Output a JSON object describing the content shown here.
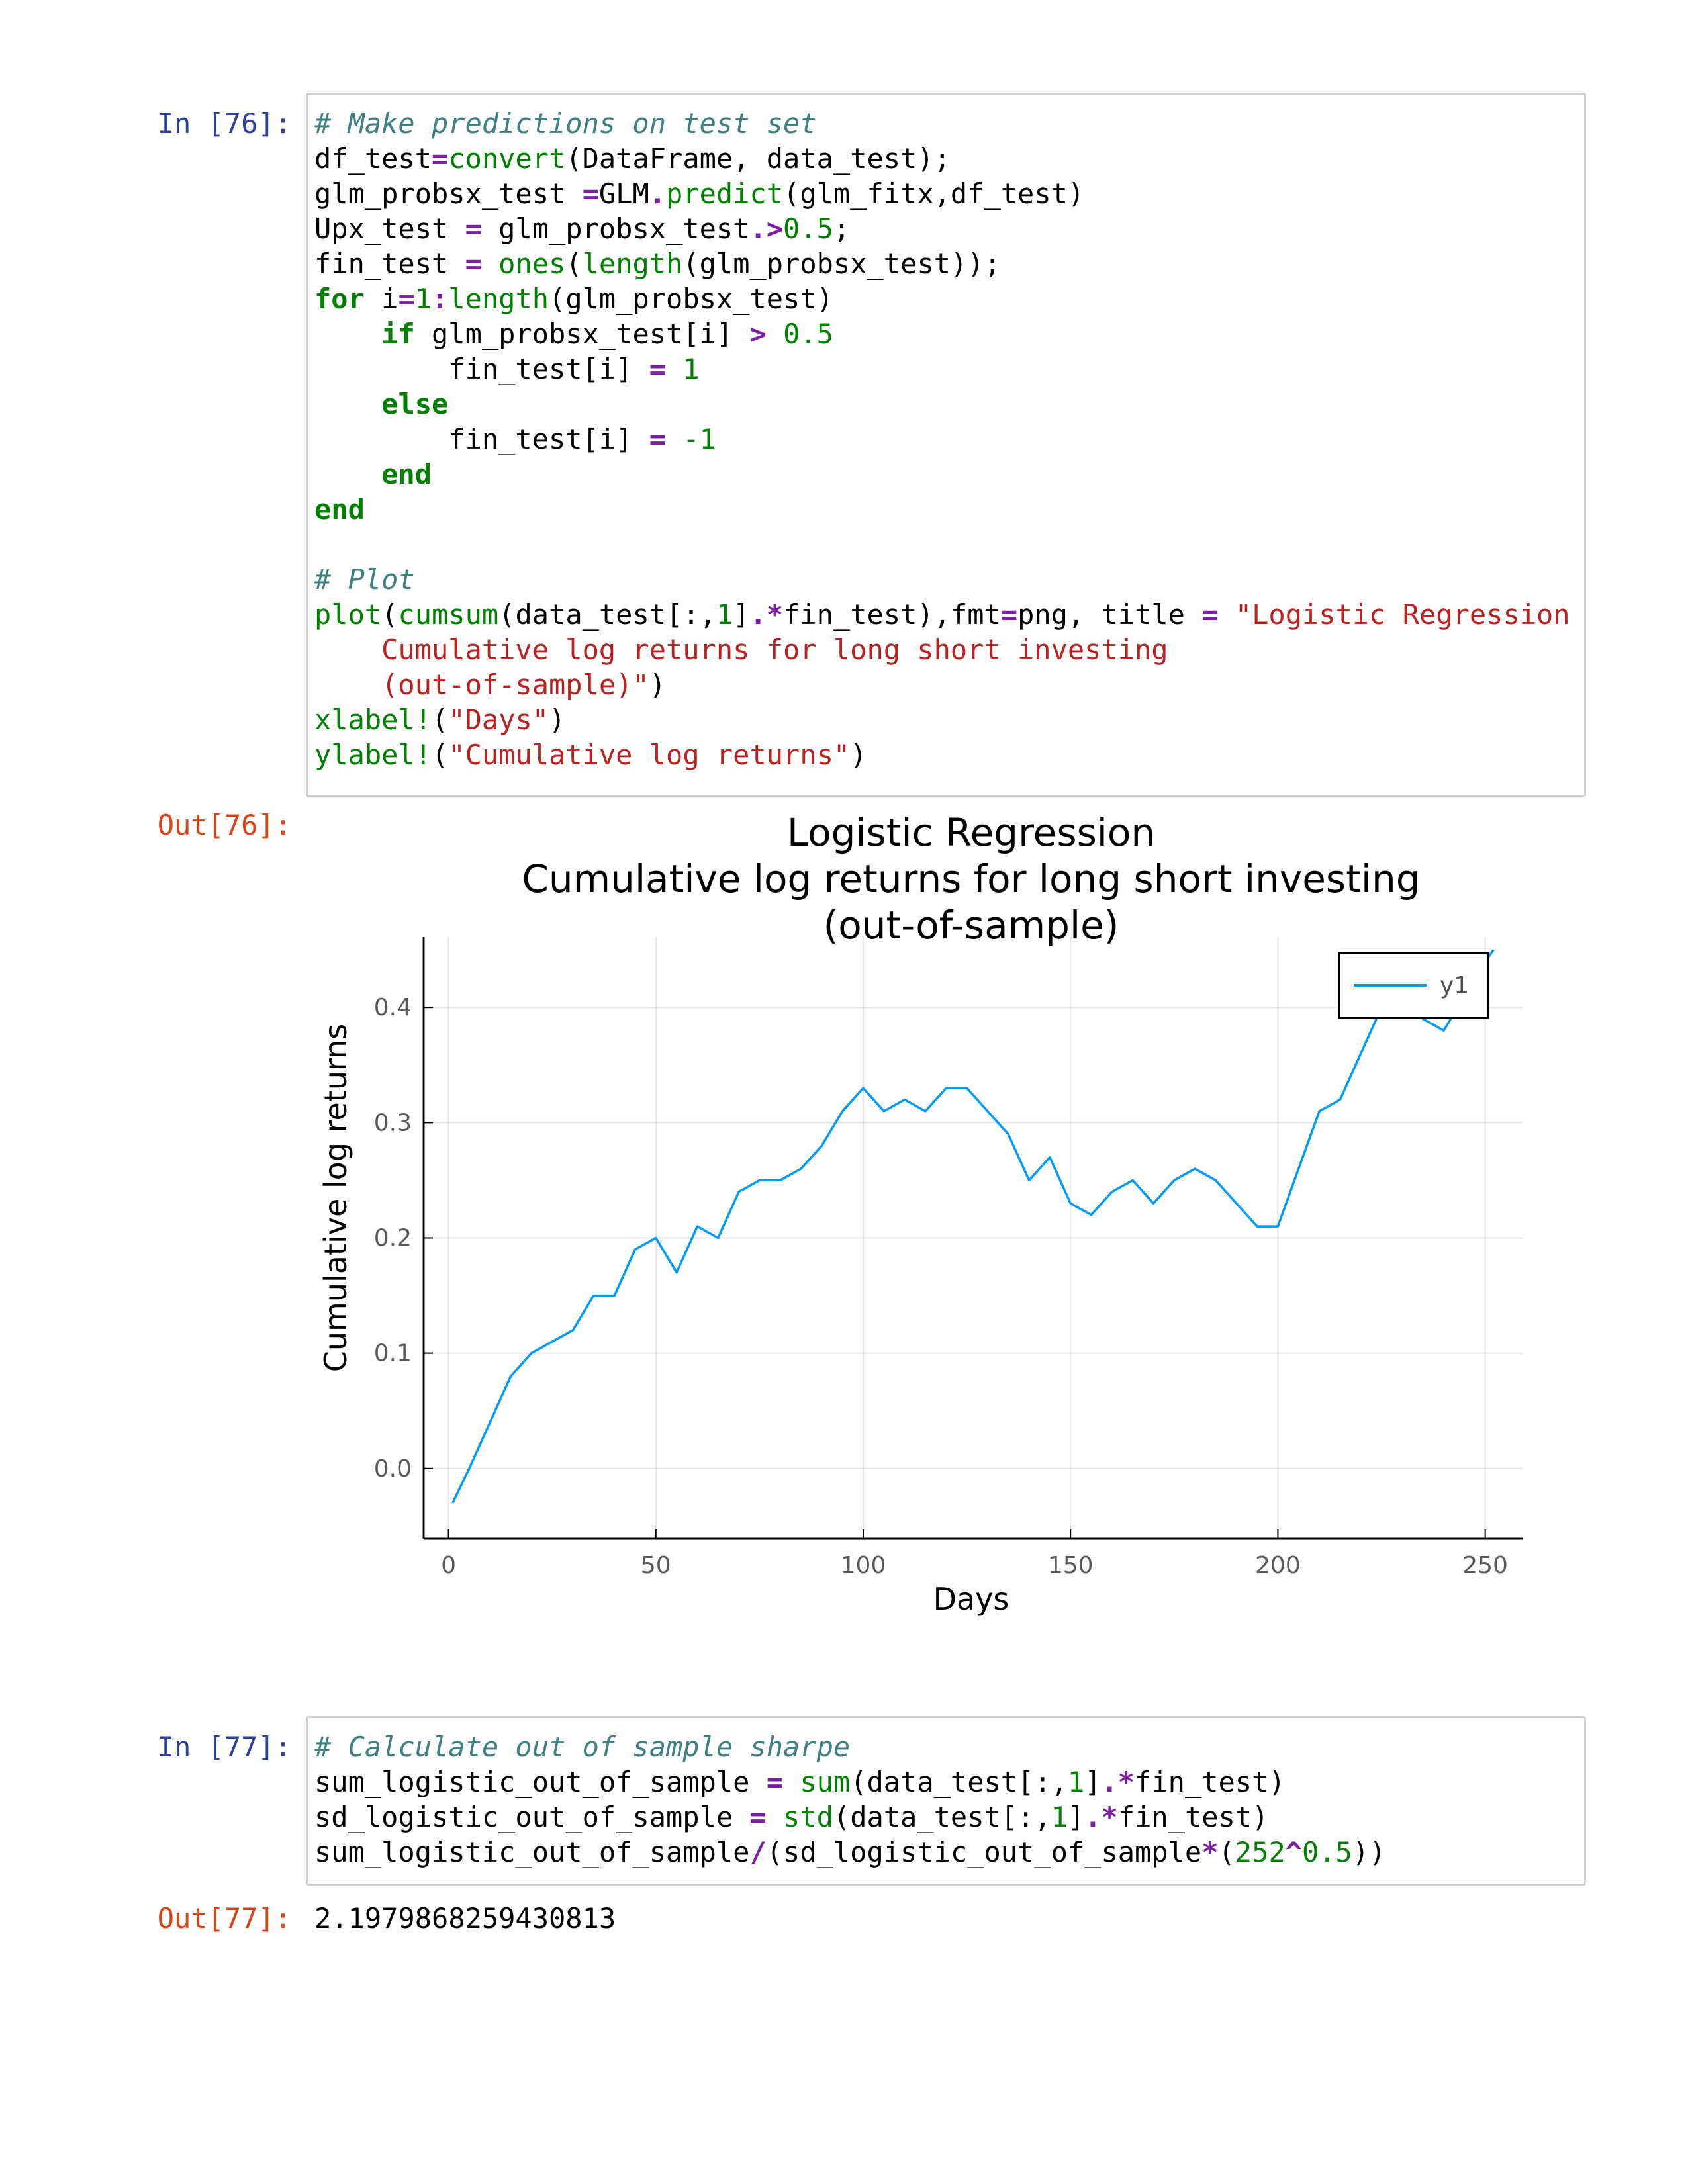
{
  "cells": {
    "cell76": {
      "in_prompt": "In [76]:",
      "out_prompt": "Out[76]:",
      "code_lines": [
        [
          [
            "cm",
            "# Make predictions on test set"
          ]
        ],
        [
          [
            "",
            "df_test"
          ],
          [
            "op",
            "="
          ],
          [
            "fn",
            "convert"
          ],
          [
            "",
            "(DataFrame, data_test);"
          ]
        ],
        [
          [
            "",
            "glm_probsx_test "
          ],
          [
            "op",
            "="
          ],
          [
            "",
            "GLM"
          ],
          [
            "op",
            "."
          ],
          [
            "fn",
            "predict"
          ],
          [
            "",
            "(glm_fitx,df_test)"
          ]
        ],
        [
          [
            "",
            "Upx_test "
          ],
          [
            "op",
            "="
          ],
          [
            "",
            " glm_probsx_test"
          ],
          [
            "op",
            ".>"
          ],
          [
            "num",
            "0.5"
          ],
          [
            "",
            ";"
          ]
        ],
        [
          [
            "",
            "fin_test "
          ],
          [
            "op",
            "="
          ],
          [
            "",
            " "
          ],
          [
            "fn",
            "ones"
          ],
          [
            "",
            "("
          ],
          [
            "fn",
            "length"
          ],
          [
            "",
            "(glm_probsx_test));"
          ]
        ],
        [
          [
            "kw",
            "for"
          ],
          [
            "",
            " i"
          ],
          [
            "op",
            "="
          ],
          [
            "num",
            "1"
          ],
          [
            "op",
            ":"
          ],
          [
            "fn",
            "length"
          ],
          [
            "",
            "(glm_probsx_test)"
          ]
        ],
        [
          [
            "",
            "    "
          ],
          [
            "kw",
            "if"
          ],
          [
            "",
            " glm_probsx_test[i] "
          ],
          [
            "op",
            ">"
          ],
          [
            "",
            " "
          ],
          [
            "num",
            "0.5"
          ]
        ],
        [
          [
            "",
            "        fin_test[i] "
          ],
          [
            "op",
            "="
          ],
          [
            "",
            " "
          ],
          [
            "num",
            "1"
          ]
        ],
        [
          [
            "",
            "    "
          ],
          [
            "kw",
            "else"
          ]
        ],
        [
          [
            "",
            "        fin_test[i] "
          ],
          [
            "op",
            "="
          ],
          [
            "",
            " "
          ],
          [
            "num",
            "-1"
          ]
        ],
        [
          [
            "",
            "    "
          ],
          [
            "kw",
            "end"
          ]
        ],
        [
          [
            "kw",
            "end"
          ]
        ],
        [
          [
            "",
            ""
          ]
        ],
        [
          [
            "cm",
            "# Plot"
          ]
        ],
        [
          [
            "fn",
            "plot"
          ],
          [
            "",
            "("
          ],
          [
            "fn",
            "cumsum"
          ],
          [
            "",
            "(data_test[:,"
          ],
          [
            "num",
            "1"
          ],
          [
            "",
            "]"
          ],
          [
            "op",
            ".*"
          ],
          [
            "",
            "fin_test),fmt"
          ],
          [
            "op",
            "="
          ],
          [
            "",
            "png, title "
          ],
          [
            "op",
            "="
          ],
          [
            "",
            " "
          ],
          [
            "str",
            "\"Logistic Regression"
          ]
        ],
        [
          [
            "str",
            "    Cumulative log returns for long short investing"
          ]
        ],
        [
          [
            "str",
            "    (out-of-sample)\""
          ],
          [
            "",
            ")"
          ]
        ],
        [
          [
            "fn",
            "xlabel!"
          ],
          [
            "",
            "("
          ],
          [
            "str",
            "\"Days\""
          ],
          [
            "",
            ")"
          ]
        ],
        [
          [
            "fn",
            "ylabel!"
          ],
          [
            "",
            "("
          ],
          [
            "str",
            "\"Cumulative log returns\""
          ],
          [
            "",
            ")"
          ]
        ]
      ]
    },
    "cell77": {
      "in_prompt": "In [77]:",
      "out_prompt": "Out[77]:",
      "code_lines": [
        [
          [
            "cm",
            "# Calculate out of sample sharpe"
          ]
        ],
        [
          [
            "",
            "sum_logistic_out_of_sample "
          ],
          [
            "op",
            "="
          ],
          [
            "",
            " "
          ],
          [
            "fn",
            "sum"
          ],
          [
            "",
            "(data_test[:,"
          ],
          [
            "num",
            "1"
          ],
          [
            "",
            "]"
          ],
          [
            "op",
            ".*"
          ],
          [
            "",
            "fin_test)"
          ]
        ],
        [
          [
            "",
            "sd_logistic_out_of_sample "
          ],
          [
            "op",
            "="
          ],
          [
            "",
            " "
          ],
          [
            "fn",
            "std"
          ],
          [
            "",
            "(data_test[:,"
          ],
          [
            "num",
            "1"
          ],
          [
            "",
            "]"
          ],
          [
            "op",
            ".*"
          ],
          [
            "",
            "fin_test)"
          ]
        ],
        [
          [
            "",
            "sum_logistic_out_of_sample"
          ],
          [
            "op",
            "/"
          ],
          [
            "",
            "(sd_logistic_out_of_sample"
          ],
          [
            "op",
            "*"
          ],
          [
            "",
            "("
          ],
          [
            "num",
            "252"
          ],
          [
            "op",
            "^"
          ],
          [
            "num",
            "0.5"
          ],
          [
            "",
            "))"
          ]
        ]
      ],
      "result": "2.1979868259430813"
    }
  },
  "syntax_colors": {
    "comment": "#408080",
    "keyword": "#008000",
    "operator": "#7c1fa6",
    "string": "#ba2121",
    "in_prompt": "#303f9f",
    "out_prompt": "#d84315"
  },
  "chart_data": {
    "type": "line",
    "title": "Logistic Regression\nCumulative log returns for long short investing\n(out-of-sample)",
    "xlabel": "Days",
    "ylabel": "Cumulative log returns",
    "xlim": [
      -6,
      259
    ],
    "ylim": [
      -0.061,
      0.461
    ],
    "xticks": [
      0,
      50,
      100,
      150,
      200,
      250
    ],
    "yticks": [
      0.0,
      0.1,
      0.2,
      0.3,
      0.4
    ],
    "ytick_labels": [
      "0.0",
      "0.1",
      "0.2",
      "0.3",
      "0.4"
    ],
    "grid": true,
    "legend": "top-right",
    "line_color": "#009af9",
    "series": [
      {
        "name": "y1",
        "x": [
          1,
          5,
          10,
          15,
          20,
          25,
          30,
          35,
          40,
          45,
          50,
          55,
          60,
          65,
          70,
          75,
          80,
          85,
          90,
          95,
          100,
          105,
          110,
          115,
          120,
          125,
          130,
          135,
          140,
          145,
          150,
          155,
          160,
          165,
          170,
          175,
          180,
          185,
          190,
          195,
          200,
          205,
          210,
          215,
          220,
          225,
          230,
          235,
          240,
          245,
          250,
          252
        ],
        "values": [
          -0.03,
          0.0,
          0.04,
          0.08,
          0.1,
          0.11,
          0.12,
          0.15,
          0.15,
          0.19,
          0.2,
          0.17,
          0.21,
          0.2,
          0.24,
          0.25,
          0.25,
          0.26,
          0.28,
          0.31,
          0.33,
          0.31,
          0.32,
          0.31,
          0.33,
          0.33,
          0.31,
          0.29,
          0.25,
          0.27,
          0.23,
          0.22,
          0.24,
          0.25,
          0.23,
          0.25,
          0.26,
          0.25,
          0.23,
          0.21,
          0.21,
          0.26,
          0.31,
          0.32,
          0.36,
          0.4,
          0.42,
          0.39,
          0.38,
          0.41,
          0.44,
          0.45
        ]
      }
    ]
  }
}
